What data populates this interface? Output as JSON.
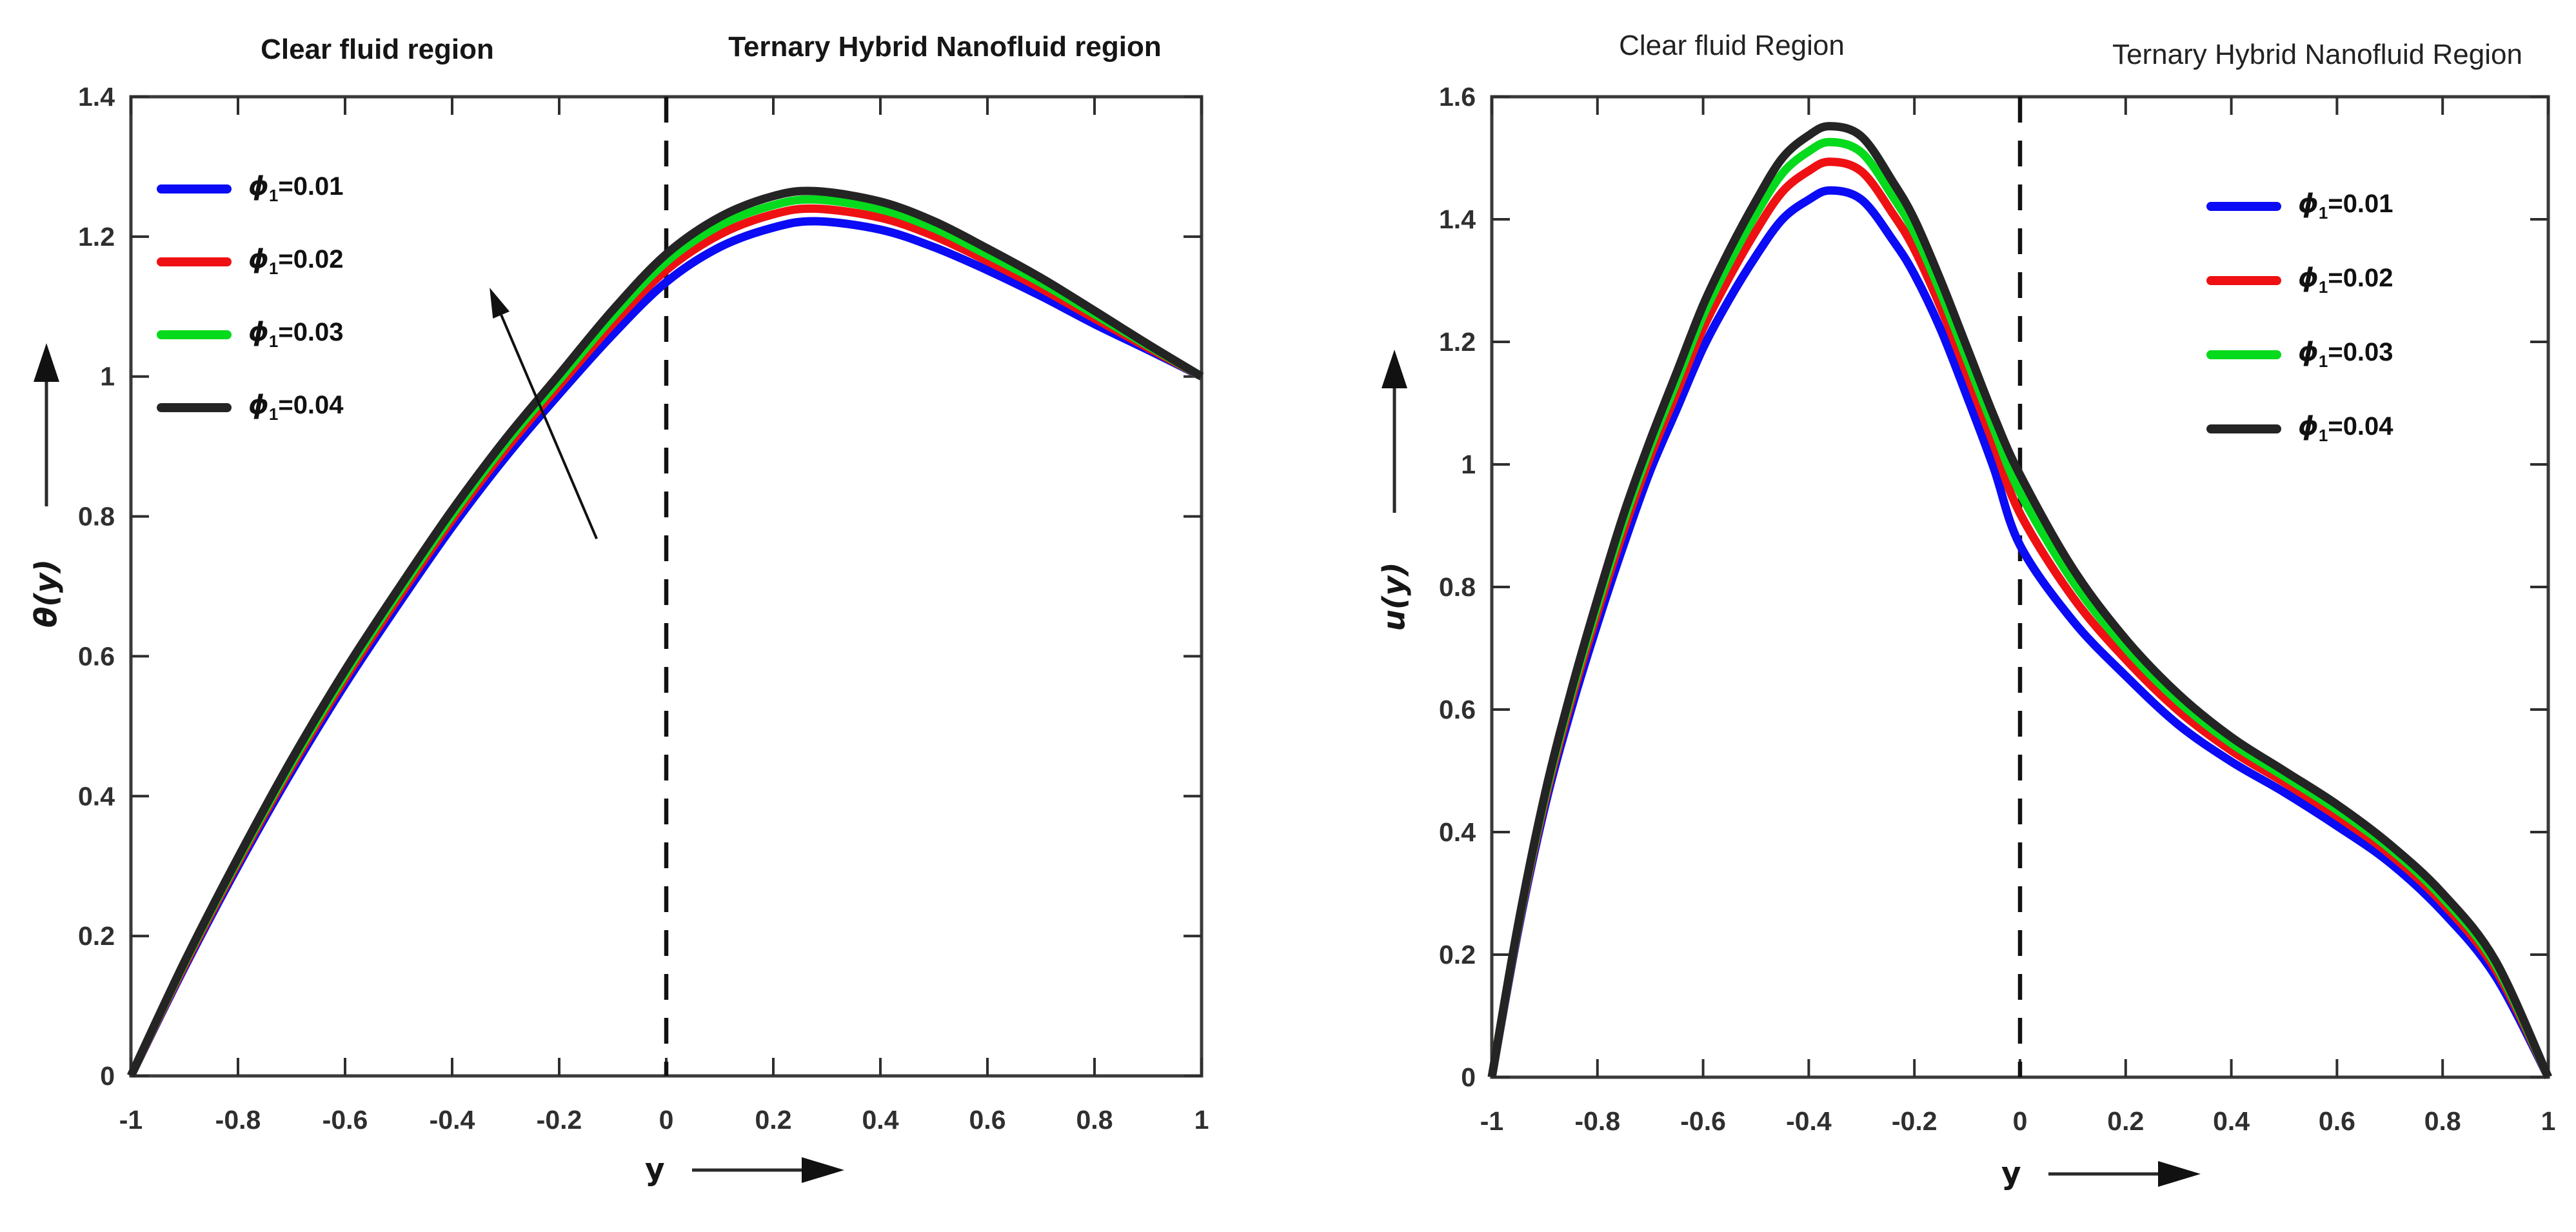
{
  "charts": [
    {
      "name": "temperature-profile",
      "region_titles": {
        "left": "Clear fluid region",
        "right": "Ternary Hybrid Nanofluid region"
      },
      "x_label": "y",
      "y_label": "θ(y)",
      "x_ticks": [
        "-1",
        "-0.8",
        "-0.6",
        "-0.4",
        "-0.2",
        "0",
        "0.2",
        "0.4",
        "0.6",
        "0.8",
        "1"
      ],
      "y_ticks": [
        "0",
        "0.2",
        "0.4",
        "0.6",
        "0.8",
        "1",
        "1.2",
        "1.4"
      ],
      "legend": [
        {
          "symbol": "ϕ",
          "subscript": "1",
          "value": "=0.01",
          "color": "#0b0bf5"
        },
        {
          "symbol": "ϕ",
          "subscript": "1",
          "value": "=0.02",
          "color": "#ef1013"
        },
        {
          "symbol": "ϕ",
          "subscript": "1",
          "value": "=0.03",
          "color": "#06da1c"
        },
        {
          "symbol": "ϕ",
          "subscript": "1",
          "value": "=0.04",
          "color": "#242424"
        }
      ]
    },
    {
      "name": "velocity-profile",
      "region_titles": {
        "left": "Clear fluid Region",
        "right": "Ternary Hybrid Nanofluid Region"
      },
      "x_label": "y",
      "y_label": "u(y)",
      "x_ticks": [
        "-1",
        "-0.8",
        "-0.6",
        "-0.4",
        "-0.2",
        "0",
        "0.2",
        "0.4",
        "0.6",
        "0.8",
        "1"
      ],
      "y_ticks": [
        "0",
        "0.2",
        "0.4",
        "0.6",
        "0.8",
        "1",
        "1.2",
        "1.4",
        "1.6"
      ],
      "legend": [
        {
          "symbol": "ϕ",
          "subscript": "1",
          "value": "=0.01",
          "color": "#0b0bf5"
        },
        {
          "symbol": "ϕ",
          "subscript": "1",
          "value": "=0.02",
          "color": "#ef1013"
        },
        {
          "symbol": "ϕ",
          "subscript": "1",
          "value": "=0.03",
          "color": "#06da1c"
        },
        {
          "symbol": "ϕ",
          "subscript": "1",
          "value": "=0.04",
          "color": "#242424"
        }
      ]
    }
  ],
  "chart_data": [
    {
      "type": "line",
      "title": "",
      "xlabel": "y",
      "ylabel": "θ(y)",
      "xlim": [
        -1,
        1
      ],
      "ylim": [
        0,
        1.4
      ],
      "grid": false,
      "legend_position": "upper left",
      "divider_x": 0,
      "annotation_arrow": {
        "from": [
          -0.13,
          0.768
        ],
        "to": [
          -0.33,
          1.127
        ]
      },
      "x": [
        -1,
        -0.9,
        -0.8,
        -0.7,
        -0.6,
        -0.5,
        -0.4,
        -0.3,
        -0.2,
        -0.1,
        0,
        0.1,
        0.2,
        0.28,
        0.4,
        0.5,
        0.6,
        0.7,
        0.8,
        0.9,
        1
      ],
      "series": [
        {
          "name": "phi1=0.01",
          "color": "#0b0bf5",
          "values": [
            0,
            0.155,
            0.3,
            0.435,
            0.56,
            0.675,
            0.785,
            0.885,
            0.975,
            1.06,
            1.135,
            1.185,
            1.213,
            1.222,
            1.21,
            1.185,
            1.152,
            1.115,
            1.075,
            1.038,
            1.0
          ]
        },
        {
          "name": "phi1=0.02",
          "color": "#ef1013",
          "values": [
            0,
            0.158,
            0.305,
            0.442,
            0.568,
            0.684,
            0.795,
            0.896,
            0.987,
            1.075,
            1.152,
            1.203,
            1.232,
            1.24,
            1.227,
            1.201,
            1.165,
            1.126,
            1.083,
            1.041,
            1.0
          ]
        },
        {
          "name": "phi1=0.03",
          "color": "#06da1c",
          "values": [
            0,
            0.161,
            0.309,
            0.447,
            0.574,
            0.691,
            0.802,
            0.904,
            0.995,
            1.085,
            1.164,
            1.216,
            1.245,
            1.253,
            1.239,
            1.212,
            1.174,
            1.134,
            1.089,
            1.044,
            1.0
          ]
        },
        {
          "name": "phi1=0.04",
          "color": "#242424",
          "values": [
            0,
            0.163,
            0.312,
            0.452,
            0.58,
            0.697,
            0.809,
            0.911,
            1.003,
            1.095,
            1.175,
            1.228,
            1.258,
            1.265,
            1.25,
            1.222,
            1.183,
            1.141,
            1.094,
            1.046,
            1.0
          ]
        }
      ]
    },
    {
      "type": "line",
      "title": "",
      "xlabel": "y",
      "ylabel": "u(y)",
      "xlim": [
        -1,
        1
      ],
      "ylim": [
        0,
        1.6
      ],
      "grid": false,
      "legend_position": "upper right",
      "divider_x": 0,
      "annotation_arrow": null,
      "x": [
        -1,
        -0.95,
        -0.9,
        -0.85,
        -0.8,
        -0.75,
        -0.7,
        -0.65,
        -0.6,
        -0.55,
        -0.5,
        -0.45,
        -0.4,
        -0.36,
        -0.3,
        -0.24,
        -0.2,
        -0.15,
        -0.1,
        -0.05,
        0,
        0.1,
        0.2,
        0.3,
        0.4,
        0.5,
        0.6,
        0.7,
        0.8,
        0.9,
        1
      ],
      "series": [
        {
          "name": "phi1=0.01",
          "color": "#0b0bf5",
          "values": [
            0,
            0.24,
            0.44,
            0.6,
            0.74,
            0.87,
            0.99,
            1.09,
            1.19,
            1.27,
            1.34,
            1.4,
            1.432,
            1.447,
            1.432,
            1.365,
            1.31,
            1.22,
            1.11,
            0.995,
            0.868,
            0.745,
            0.655,
            0.575,
            0.515,
            0.465,
            0.41,
            0.35,
            0.27,
            0.165,
            0
          ]
        },
        {
          "name": "phi1=0.02",
          "color": "#ef1013",
          "values": [
            0,
            0.245,
            0.449,
            0.614,
            0.758,
            0.893,
            1.013,
            1.117,
            1.222,
            1.306,
            1.381,
            1.445,
            1.479,
            1.494,
            1.478,
            1.408,
            1.351,
            1.256,
            1.146,
            1.033,
            0.92,
            0.783,
            0.682,
            0.598,
            0.533,
            0.481,
            0.426,
            0.364,
            0.284,
            0.176,
            0
          ]
        },
        {
          "name": "phi1=0.03",
          "color": "#06da1c",
          "values": [
            0,
            0.248,
            0.455,
            0.623,
            0.77,
            0.908,
            1.028,
            1.135,
            1.243,
            1.33,
            1.408,
            1.475,
            1.511,
            1.526,
            1.509,
            1.436,
            1.378,
            1.28,
            1.17,
            1.059,
            0.954,
            0.809,
            0.7,
            0.613,
            0.545,
            0.491,
            0.436,
            0.373,
            0.293,
            0.184,
            0
          ]
        },
        {
          "name": "phi1=0.04",
          "color": "#242424",
          "values": [
            0,
            0.25,
            0.46,
            0.63,
            0.78,
            0.92,
            1.04,
            1.15,
            1.26,
            1.35,
            1.43,
            1.5,
            1.537,
            1.552,
            1.535,
            1.46,
            1.4,
            1.3,
            1.19,
            1.08,
            0.983,
            0.83,
            0.715,
            0.625,
            0.555,
            0.5,
            0.445,
            0.38,
            0.3,
            0.19,
            0
          ]
        }
      ]
    }
  ]
}
